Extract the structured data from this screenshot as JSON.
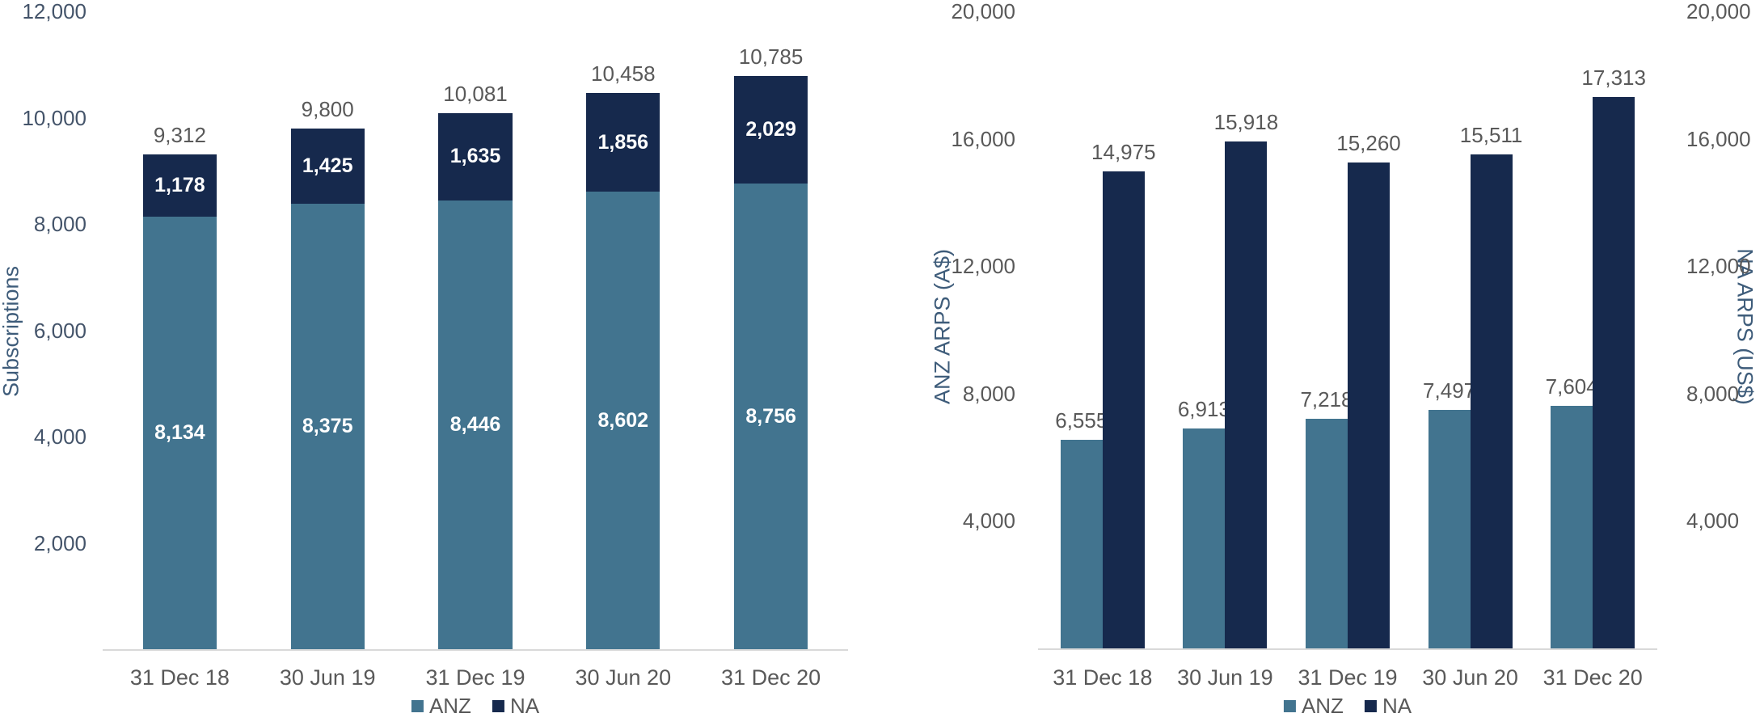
{
  "colors": {
    "anz": "#42748F",
    "na": "#16294D",
    "outside_label_gray": "#595959",
    "left_chart_tick_blue": "#44546A",
    "right_chart_tick_gray": "#595959",
    "axis_title_blue": "#3E5C7A",
    "axis_line_gray": "#D9D9D9",
    "inside_label_white": "#FFFFFF"
  },
  "chart_data": [
    {
      "id": "subscriptions",
      "type": "bar",
      "variant": "stacked",
      "title": "",
      "xlabel": "",
      "ylabel": "Subscriptions",
      "categories": [
        "31 Dec 18",
        "30 Jun 19",
        "31 Dec 19",
        "30 Jun 20",
        "31 Dec 20"
      ],
      "series": [
        {
          "name": "ANZ",
          "color": "#42748F",
          "values": [
            8134,
            8375,
            8446,
            8602,
            8756
          ]
        },
        {
          "name": "NA",
          "color": "#16294D",
          "values": [
            1178,
            1425,
            1635,
            1856,
            2029
          ]
        }
      ],
      "totals": [
        9312,
        9800,
        10081,
        10458,
        10785
      ],
      "ylim": [
        0,
        12000
      ],
      "yticks": [
        2000,
        4000,
        6000,
        8000,
        10000,
        12000
      ],
      "grid": false,
      "legend_position": "bottom",
      "legend": [
        {
          "label": "ANZ",
          "color": "#42748F"
        },
        {
          "label": "NA",
          "color": "#16294D"
        }
      ]
    },
    {
      "id": "arps",
      "type": "bar",
      "variant": "grouped",
      "title": "",
      "xlabel": "",
      "ylabel_left": "ANZ ARPS (A$)",
      "ylabel_right": "NA ARPS (US$)",
      "categories": [
        "31 Dec 18",
        "30 Jun 19",
        "31 Dec 19",
        "30 Jun 20",
        "31 Dec 20"
      ],
      "series": [
        {
          "name": "ANZ",
          "axis": "left",
          "color": "#42748F",
          "values": [
            6555,
            6913,
            7218,
            7497,
            7604
          ]
        },
        {
          "name": "NA",
          "axis": "right",
          "color": "#16294D",
          "values": [
            14975,
            15918,
            15260,
            15511,
            17313
          ]
        }
      ],
      "ylim_left": [
        0,
        20000
      ],
      "ylim_right": [
        0,
        20000
      ],
      "yticks_left": [
        4000,
        8000,
        12000,
        16000,
        20000
      ],
      "yticks_right": [
        4000,
        8000,
        12000,
        16000,
        20000
      ],
      "grid": false,
      "legend_position": "bottom",
      "legend": [
        {
          "label": "ANZ",
          "color": "#42748F"
        },
        {
          "label": "NA",
          "color": "#16294D"
        }
      ]
    }
  ]
}
